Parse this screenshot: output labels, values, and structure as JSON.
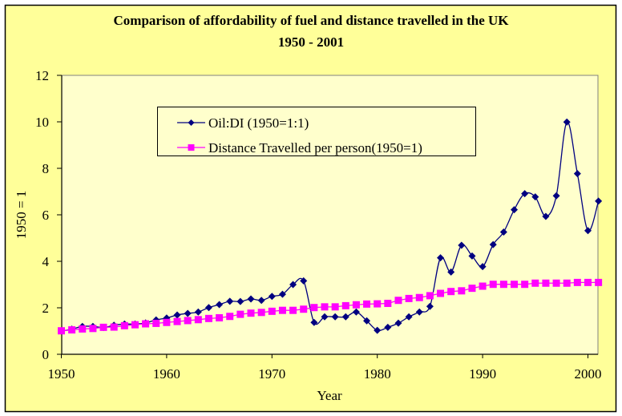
{
  "chart_data": {
    "type": "line",
    "title": "Comparison of affordability of fuel and distance travelled in the UK",
    "subtitle": "1950 - 2001",
    "xlabel": "Year",
    "ylabel": "1950 = 1",
    "xlim": [
      1950,
      2001
    ],
    "ylim": [
      0,
      12
    ],
    "xticks": [
      1950,
      1960,
      1970,
      1980,
      1990,
      2000
    ],
    "yticks": [
      0,
      2,
      4,
      6,
      8,
      10,
      12
    ],
    "grid": false,
    "legend_position": "top-center",
    "x": [
      1950,
      1951,
      1952,
      1953,
      1954,
      1955,
      1956,
      1957,
      1958,
      1959,
      1960,
      1961,
      1962,
      1963,
      1964,
      1965,
      1966,
      1967,
      1968,
      1969,
      1970,
      1971,
      1972,
      1973,
      1974,
      1975,
      1976,
      1977,
      1978,
      1979,
      1980,
      1981,
      1982,
      1983,
      1984,
      1985,
      1986,
      1987,
      1988,
      1989,
      1990,
      1991,
      1992,
      1993,
      1994,
      1995,
      1996,
      1997,
      1998,
      1999,
      2000,
      2001
    ],
    "series": [
      {
        "name": "Oil:DI (1950=1:1)",
        "color": "#000080",
        "marker": "diamond",
        "smooth": true,
        "values": [
          1.0,
          1.08,
          1.2,
          1.2,
          1.15,
          1.25,
          1.3,
          1.3,
          1.35,
          1.48,
          1.56,
          1.69,
          1.76,
          1.82,
          2.01,
          2.14,
          2.28,
          2.27,
          2.38,
          2.32,
          2.49,
          2.58,
          3.0,
          3.16,
          1.37,
          1.61,
          1.61,
          1.61,
          1.82,
          1.44,
          1.03,
          1.16,
          1.34,
          1.61,
          1.82,
          2.06,
          4.15,
          3.54,
          4.69,
          4.23,
          3.77,
          4.72,
          5.26,
          6.22,
          6.91,
          6.77,
          5.93,
          6.82,
          9.99,
          7.77,
          5.32,
          6.59
        ]
      },
      {
        "name": "Distance Travelled per person(1950=1)",
        "color": "#FF00FF",
        "marker": "square",
        "smooth": false,
        "values": [
          1.01,
          1.05,
          1.09,
          1.11,
          1.16,
          1.17,
          1.23,
          1.27,
          1.31,
          1.33,
          1.37,
          1.41,
          1.45,
          1.49,
          1.54,
          1.57,
          1.63,
          1.72,
          1.77,
          1.8,
          1.85,
          1.89,
          1.89,
          1.94,
          2.01,
          2.04,
          2.04,
          2.09,
          2.13,
          2.16,
          2.17,
          2.19,
          2.32,
          2.4,
          2.44,
          2.52,
          2.62,
          2.7,
          2.73,
          2.84,
          2.93,
          3.01,
          3.01,
          3.01,
          3.01,
          3.06,
          3.06,
          3.06,
          3.06,
          3.09,
          3.09,
          3.09
        ]
      }
    ]
  },
  "colors": {
    "frame_background": "#FFFF99",
    "plot_background": "#FFFFCC",
    "plot_border": "#808080"
  }
}
